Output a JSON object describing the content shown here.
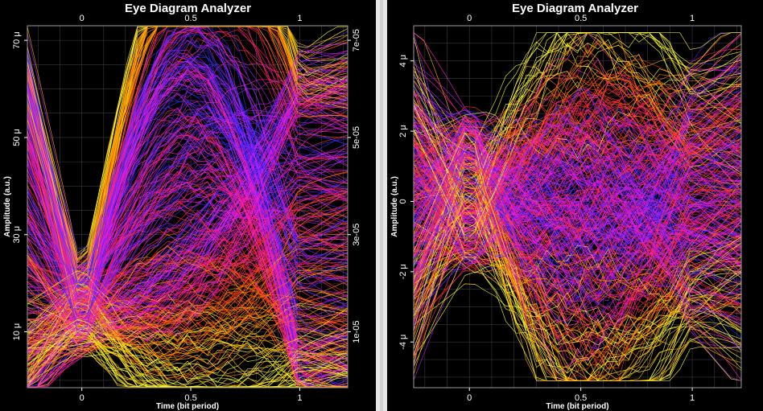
{
  "chart_data": [
    {
      "type": "line",
      "title": "Eye Diagram Analyzer",
      "xlabel": "Time (bit period)",
      "ylabel": "Amplitude (a.u.)",
      "xlim": [
        -0.25,
        1.22
      ],
      "ylim": [
        -1.5,
        73
      ],
      "x_ticks": [
        "0",
        "0.5",
        "1"
      ],
      "y_ticks_left": [
        {
          "v": 70,
          "label": "70 μ"
        },
        {
          "v": 50,
          "label": "50 μ"
        },
        {
          "v": 30,
          "label": "30 μ"
        },
        {
          "v": 10,
          "label": "10 μ"
        }
      ],
      "y_ticks_right": [
        {
          "v": 70,
          "label": "7e-05"
        },
        {
          "v": 50,
          "label": "5e-05"
        },
        {
          "v": 30,
          "label": "3e-05"
        },
        {
          "v": 10,
          "label": "1e-05"
        }
      ],
      "eye": {
        "low": 1.5,
        "high": 62,
        "crossing": 14,
        "noise": 6
      },
      "grid": true
    },
    {
      "type": "line",
      "title": "Eye Diagram Analyzer",
      "xlabel": "Time (bit period)",
      "ylabel": "Amplitude (a.u.)",
      "xlim": [
        -0.25,
        1.22
      ],
      "ylim": [
        -5.3,
        5.0
      ],
      "x_ticks": [
        "0",
        "0.5",
        "1"
      ],
      "y_ticks_left": [
        {
          "v": 4,
          "label": "4 μ"
        },
        {
          "v": 2,
          "label": "2 μ"
        },
        {
          "v": 0,
          "label": "0"
        },
        {
          "v": -2,
          "label": "-2 μ"
        },
        {
          "v": -4,
          "label": "-4 μ"
        }
      ],
      "y_ticks_right": [],
      "eye": {
        "low": -2.5,
        "high": 2.5,
        "crossing": 0.3,
        "noise": 1.6
      },
      "grid": true
    }
  ],
  "colors": {
    "background": "#000000",
    "grid": "#3a3a3a",
    "trace_palette": [
      "#ffff33",
      "#ffb000",
      "#ff7a00",
      "#ff3a1a",
      "#ff1f6e",
      "#ff1fd0",
      "#b420ff",
      "#3a2aff"
    ]
  }
}
